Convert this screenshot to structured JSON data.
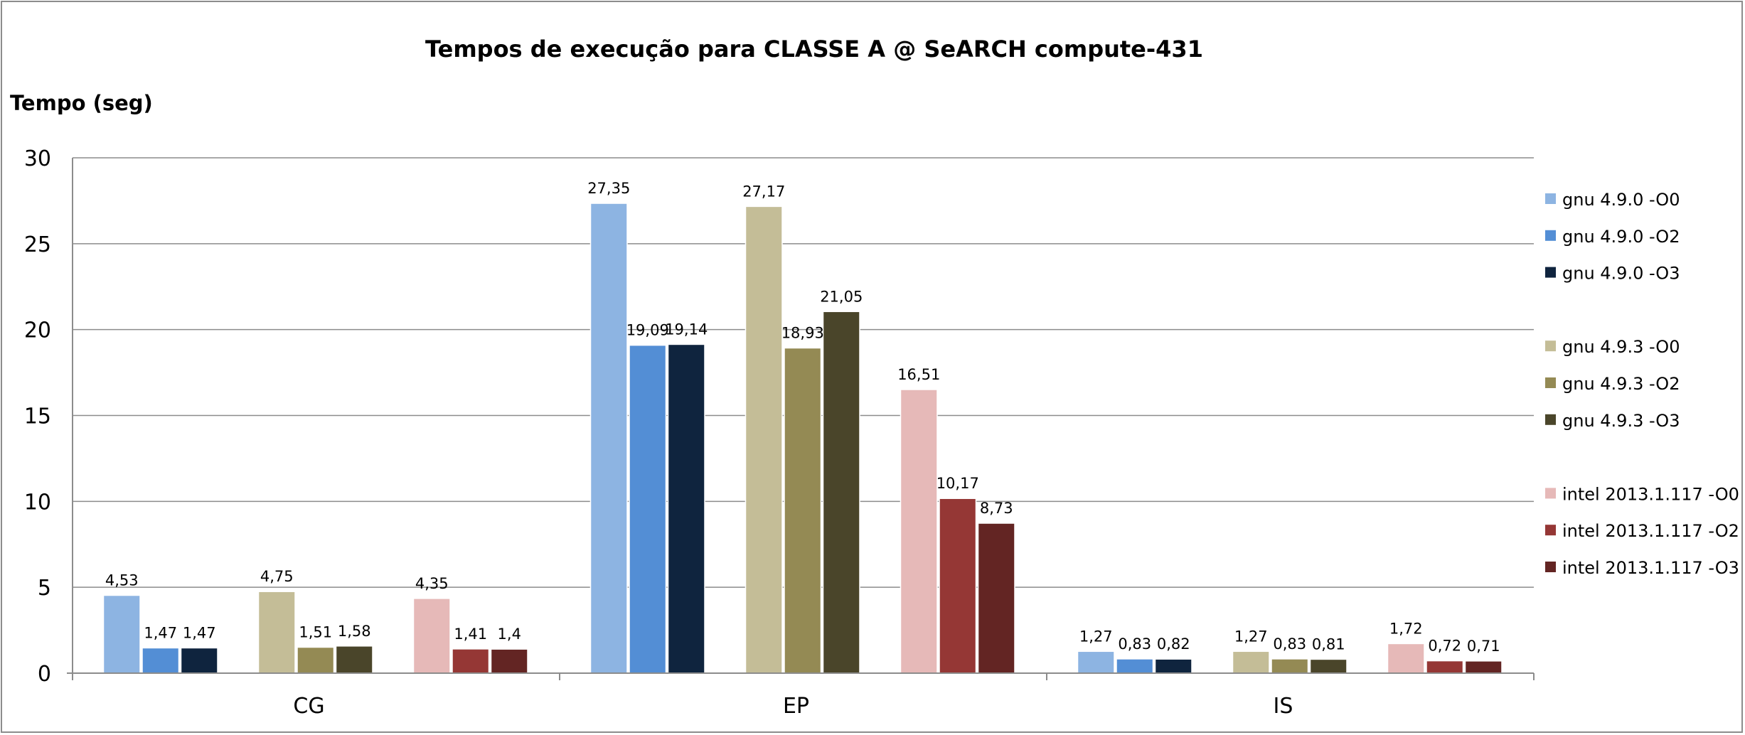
{
  "chart_data": {
    "type": "bar",
    "title": "Tempos de execução para CLASSE A @ SeARCH compute-431",
    "ylabel": "Tempo (seg)",
    "xlabel": "",
    "ylim": [
      0,
      30
    ],
    "yticks": [
      "0",
      "5",
      "10",
      "15",
      "20",
      "25",
      "30"
    ],
    "grid": true,
    "legend_position": "right",
    "categories": [
      "CG",
      "EP",
      "IS"
    ],
    "series": [
      {
        "name": "gnu 4.9.0 -O0",
        "color": "#8db4e2",
        "values": [
          4.53,
          27.35,
          1.27
        ],
        "labels": [
          "4,53",
          "27,35",
          "1,27"
        ]
      },
      {
        "name": "gnu 4.9.0 -O2",
        "color": "#538ed5",
        "values": [
          1.47,
          19.09,
          0.83
        ],
        "labels": [
          "1,47",
          "19,09",
          "0,83"
        ]
      },
      {
        "name": "gnu 4.9.0 -O3",
        "color": "#0f243e",
        "values": [
          1.47,
          19.14,
          0.82
        ],
        "labels": [
          "1,47",
          "19,14",
          "0,82"
        ]
      },
      {
        "name": "",
        "color": "#ffffff",
        "values": [
          0,
          0,
          0
        ],
        "labels": [
          "",
          "",
          ""
        ]
      },
      {
        "name": "gnu 4.9.3 -O0",
        "color": "#c4bd97",
        "values": [
          4.75,
          27.17,
          1.27
        ],
        "labels": [
          "4,75",
          "27,17",
          "1,27"
        ]
      },
      {
        "name": "gnu 4.9.3 -O2",
        "color": "#948a54",
        "values": [
          1.51,
          18.93,
          0.83
        ],
        "labels": [
          "1,51",
          "18,93",
          "0,83"
        ]
      },
      {
        "name": "gnu 4.9.3 -O3",
        "color": "#4a452a",
        "values": [
          1.58,
          21.05,
          0.81
        ],
        "labels": [
          "1,58",
          "21,05",
          "0,81"
        ]
      },
      {
        "name": "",
        "color": "#ffffff",
        "values": [
          0,
          0,
          0
        ],
        "labels": [
          "",
          "",
          ""
        ]
      },
      {
        "name": "intel 2013.1.117 -O0",
        "color": "#e6b9b8",
        "values": [
          4.35,
          16.51,
          1.72
        ],
        "labels": [
          "4,35",
          "16,51",
          "1,72"
        ]
      },
      {
        "name": "intel 2013.1.117 -O2",
        "color": "#953735",
        "values": [
          1.41,
          10.17,
          0.72
        ],
        "labels": [
          "1,41",
          "10,17",
          "0,72"
        ]
      },
      {
        "name": "intel 2013.1.117 -O3",
        "color": "#632523",
        "values": [
          1.4,
          8.73,
          0.71
        ],
        "labels": [
          "1,4",
          "8,73",
          "0,71"
        ]
      }
    ]
  }
}
